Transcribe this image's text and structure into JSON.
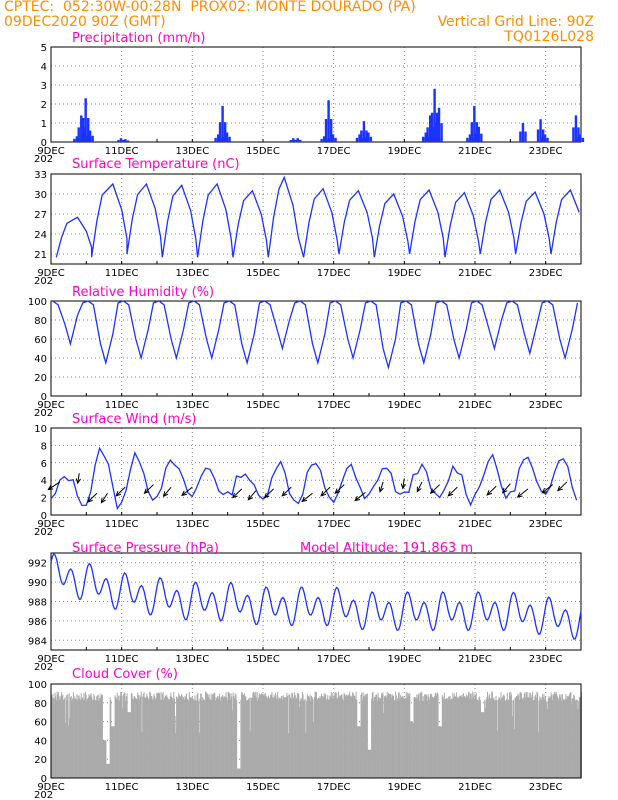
{
  "header": {
    "source": "CPTEC:",
    "location": "052:30W-00:28N",
    "station": "PROX02: MONTE DOURADO (PA)",
    "run_date": "09DEC2020 90Z (GMT)",
    "grid_line": "Vertical Grid Line: 90Z",
    "model": "TQ0126L028"
  },
  "x_axis": {
    "ticks": [
      "9DEC",
      "11DEC",
      "13DEC",
      "15DEC",
      "17DEC",
      "19DEC",
      "21DEC",
      "23DEC"
    ],
    "tick_days": [
      0,
      2,
      4,
      6,
      8,
      10,
      12,
      14
    ],
    "ylabel_fragment": "202",
    "range_days": [
      0,
      15
    ]
  },
  "model_altitude": "Model Altitude: 191.863 m",
  "colors": {
    "header": "#ff8c00",
    "title": "#ff00c8",
    "series": "#1a33ff",
    "arrow": "#000000",
    "cloud": "#aaaaaa",
    "grid": "#888888"
  },
  "chart_data": [
    {
      "id": "precip",
      "type": "bar",
      "title": "Precipitation (mm/h)",
      "ylim": [
        0,
        5
      ],
      "yticks": [
        0,
        1,
        2,
        3,
        4,
        5
      ],
      "grid": true,
      "step_days": 0.125,
      "bars": [
        [
          0.625,
          0.3
        ],
        [
          0.75,
          1.4
        ],
        [
          0.875,
          2.3
        ],
        [
          1.0,
          0.6
        ],
        [
          1.875,
          0.2
        ],
        [
          2.0,
          0.15
        ],
        [
          4.625,
          0.4
        ],
        [
          4.75,
          1.9
        ],
        [
          4.875,
          0.5
        ],
        [
          6.75,
          0.2
        ],
        [
          6.875,
          0.2
        ],
        [
          7.625,
          0.3
        ],
        [
          7.75,
          2.2
        ],
        [
          7.875,
          0.4
        ],
        [
          8.625,
          0.4
        ],
        [
          8.75,
          1.1
        ],
        [
          8.875,
          0.5
        ],
        [
          10.5,
          0.5
        ],
        [
          10.625,
          1.4
        ],
        [
          10.75,
          2.8
        ],
        [
          10.875,
          1.8
        ],
        [
          11.75,
          0.4
        ],
        [
          11.875,
          1.9
        ],
        [
          12.0,
          0.8
        ],
        [
          13.25,
          1.0
        ],
        [
          13.75,
          1.2
        ],
        [
          13.875,
          0.4
        ],
        [
          14.75,
          1.4
        ],
        [
          14.875,
          0.4
        ]
      ]
    },
    {
      "id": "temp",
      "type": "line",
      "title": "Surface Temperature (nC)",
      "ylim": [
        19.5,
        33
      ],
      "yticks": [
        21,
        24,
        27,
        30,
        33
      ],
      "grid": true,
      "daily_max": [
        26.5,
        31.5,
        31.5,
        31.3,
        31.5,
        30.5,
        32.5,
        30.8,
        30.5,
        30.0,
        30.6,
        30.2,
        30.6,
        30.3,
        30.6
      ],
      "daily_min": [
        20.5,
        20.5,
        21.0,
        20.5,
        20.5,
        20.5,
        20.5,
        20.5,
        21.0,
        20.5,
        21.0,
        20.5,
        21.0,
        21.0,
        21.0
      ],
      "peak_day": [
        0.75,
        1.75,
        2.7,
        3.7,
        4.7,
        5.7,
        6.6,
        7.7,
        8.7,
        9.7,
        10.7,
        11.7,
        12.7,
        13.7,
        14.7
      ]
    },
    {
      "id": "rh",
      "type": "line",
      "title": "Relative Humidity (%)",
      "ylim": [
        0,
        100
      ],
      "yticks": [
        0,
        20,
        40,
        60,
        80,
        100
      ],
      "grid": true,
      "daily_min": [
        55,
        35,
        40,
        40,
        40,
        35,
        50,
        35,
        40,
        30,
        35,
        40,
        50,
        45,
        40
      ],
      "daily_max": [
        100,
        100,
        100,
        100,
        100,
        100,
        100,
        100,
        100,
        100,
        100,
        100,
        100,
        100,
        100
      ]
    },
    {
      "id": "wind",
      "type": "line",
      "title": "Surface Wind (m/s)",
      "ylim": [
        0,
        10
      ],
      "yticks": [
        0,
        2,
        4,
        6,
        8,
        10
      ],
      "grid": true,
      "daily_peak": [
        4.5,
        7.5,
        6.8,
        6.0,
        5.5,
        5.0,
        6.0,
        6.0,
        5.5,
        5.5,
        5.5,
        5.5,
        6.5,
        6.5,
        7.0
      ],
      "daily_low": [
        1.5,
        1.0,
        1.5,
        2.5,
        2.0,
        2.0,
        1.5,
        1.5,
        1.5,
        2.0,
        2.0,
        1.5,
        2.0,
        2.0,
        2.0
      ],
      "arrows": [
        [
          0.25,
          3.8,
          230
        ],
        [
          0.8,
          4.8,
          265
        ],
        [
          1.3,
          2.5,
          240
        ],
        [
          1.6,
          2.5,
          250
        ],
        [
          2.1,
          3.2,
          240
        ],
        [
          2.9,
          3.5,
          240
        ],
        [
          3.4,
          3.2,
          245
        ],
        [
          4.0,
          3.2,
          235
        ],
        [
          5.4,
          3.0,
          240
        ],
        [
          5.8,
          2.8,
          245
        ],
        [
          6.3,
          3.0,
          240
        ],
        [
          6.8,
          3.2,
          240
        ],
        [
          7.4,
          2.5,
          235
        ],
        [
          7.9,
          3.2,
          240
        ],
        [
          8.3,
          3.5,
          240
        ],
        [
          8.9,
          2.6,
          235
        ],
        [
          9.4,
          3.8,
          260
        ],
        [
          10.0,
          4.2,
          265
        ],
        [
          10.5,
          3.8,
          255
        ],
        [
          11.0,
          3.5,
          240
        ],
        [
          11.5,
          3.2,
          240
        ],
        [
          12.6,
          3.3,
          240
        ],
        [
          13.0,
          3.6,
          245
        ],
        [
          13.5,
          3.0,
          235
        ],
        [
          14.2,
          3.5,
          235
        ],
        [
          14.6,
          3.8,
          240
        ]
      ]
    },
    {
      "id": "pressure",
      "type": "line",
      "title": "Surface Pressure (hPa)",
      "ylim": [
        983,
        993
      ],
      "yticks": [
        984,
        986,
        988,
        990,
        992
      ],
      "grid": true,
      "trend": [
        991.0,
        990.0,
        989.0,
        988.5,
        988.0,
        988.0,
        987.5,
        987.5,
        987.5,
        987.0,
        987.0,
        987.0,
        987.0,
        987.0,
        986.5,
        986.0
      ],
      "tide_amplitude": 2.2
    },
    {
      "id": "cloud",
      "type": "area",
      "title": "Cloud Cover (%)",
      "ylim": [
        0,
        100
      ],
      "yticks": [
        0,
        20,
        40,
        60,
        80,
        100
      ],
      "grid": true,
      "base_level": 92,
      "dips": [
        [
          1.5,
          40
        ],
        [
          1.6,
          15
        ],
        [
          1.75,
          55
        ],
        [
          2.2,
          70
        ],
        [
          5.3,
          10
        ],
        [
          8.7,
          55
        ],
        [
          9.0,
          30
        ],
        [
          10.2,
          60
        ],
        [
          11.0,
          55
        ],
        [
          12.2,
          70
        ]
      ]
    }
  ]
}
